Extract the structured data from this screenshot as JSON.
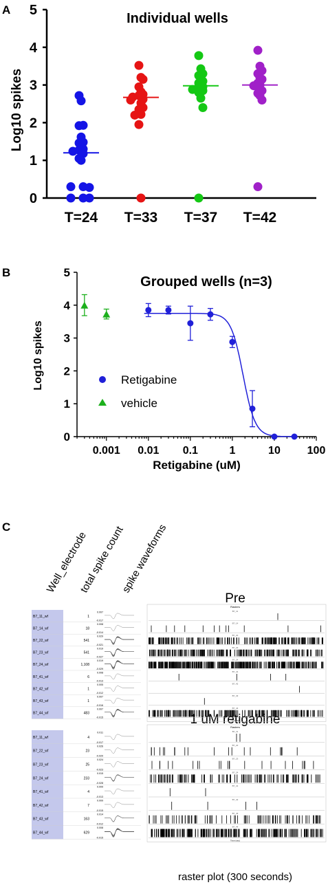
{
  "panels": {
    "a": "A",
    "b": "B",
    "c": "C"
  },
  "chart_data": [
    {
      "type": "scatter",
      "title": "Individual wells",
      "ylabel": "Log10 spikes",
      "xlabel": "",
      "ylim": [
        0,
        5
      ],
      "yticks": [
        "0",
        "1",
        "2",
        "3",
        "4",
        "5"
      ],
      "categories": [
        "T=24",
        "T=33",
        "T=37",
        "T=42"
      ],
      "colors": [
        "#1414e6",
        "#e61414",
        "#14c814",
        "#a020c8"
      ],
      "series": [
        {
          "values": [
            2.72,
            2.58,
            1.93,
            1.92,
            1.62,
            1.48,
            1.46,
            1.35,
            1.3,
            1.27,
            1.24,
            1.18,
            1.05,
            1.0,
            0.3,
            0.3,
            0.28,
            0.0,
            0.0,
            0.0
          ]
        },
        {
          "values": [
            3.52,
            3.2,
            3.15,
            2.95,
            2.82,
            2.75,
            2.72,
            2.68,
            2.62,
            2.6,
            2.52,
            2.4,
            2.35,
            2.22,
            2.2,
            1.95,
            0.0
          ]
        },
        {
          "values": [
            3.78,
            3.43,
            3.3,
            3.25,
            3.15,
            3.1,
            3.05,
            3.0,
            2.95,
            2.92,
            2.88,
            2.85,
            2.8,
            2.65,
            2.4,
            0.0
          ]
        },
        {
          "values": [
            3.92,
            3.5,
            3.38,
            3.3,
            3.2,
            3.15,
            3.05,
            3.0,
            2.98,
            2.95,
            2.9,
            2.85,
            2.78,
            2.72,
            2.6,
            0.3
          ]
        }
      ],
      "means": [
        1.2,
        2.67,
        2.98,
        3.0
      ]
    },
    {
      "type": "scatter",
      "title": "Grouped wells (n=3)",
      "xlabel": "Retigabine (uM)",
      "ylabel": "Log10 spikes",
      "xscale": "log",
      "ylim": [
        0,
        5
      ],
      "yticks": [
        "0",
        "1",
        "2",
        "3",
        "4",
        "5"
      ],
      "xticks": [
        {
          "v": 0.001,
          "label": "0.001"
        },
        {
          "v": 0.01,
          "label": "0.01"
        },
        {
          "v": 0.1,
          "label": "0.1"
        },
        {
          "v": 1,
          "label": "1"
        },
        {
          "v": 10,
          "label": "10"
        },
        {
          "v": 100,
          "label": "100"
        }
      ],
      "legend": "center-left",
      "series": [
        {
          "name": "Retigabine",
          "color": "#2020d8",
          "marker": "circle",
          "points": [
            {
              "x": 0.01,
              "y": 3.85,
              "err": 0.2
            },
            {
              "x": 0.03,
              "y": 3.85,
              "err": 0.12
            },
            {
              "x": 0.1,
              "y": 3.45,
              "err": 0.52
            },
            {
              "x": 0.3,
              "y": 3.72,
              "err": 0.18
            },
            {
              "x": 1,
              "y": 2.88,
              "err": 0.17
            },
            {
              "x": 3,
              "y": 0.85,
              "err": 0.55
            },
            {
              "x": 10,
              "y": 0.0,
              "err": 0.0
            },
            {
              "x": 30,
              "y": 0.0,
              "err": 0.0
            }
          ],
          "fit": {
            "top": 3.75,
            "bottom": 0.0,
            "ic50": 1.8,
            "hill": 3.0
          }
        },
        {
          "name": "vehicle",
          "color": "#1cb01c",
          "marker": "triangle",
          "points": [
            {
              "x": 0.0003,
              "y": 4.0,
              "err": 0.32
            },
            {
              "x": 0.001,
              "y": 3.73,
              "err": 0.15
            }
          ]
        }
      ]
    }
  ],
  "panel_c": {
    "column_headers": [
      "Well_electrode",
      "total spike count",
      "spike waveforms"
    ],
    "pre": {
      "title": "Pre",
      "raster_header": "Rasters",
      "time_label": "Time (sec)",
      "rows": [
        {
          "well": "B7_11_wf",
          "count": "1",
          "ymax": "0.007",
          "ymin": "-0.017",
          "density": 1
        },
        {
          "well": "B7_14_wf",
          "count": "18",
          "ymax": "0.008",
          "ymin": "-0.014",
          "density": 12
        },
        {
          "well": "B7_22_wf",
          "count": "541",
          "ymax": "0.029",
          "ymin": "-0.021",
          "density": 200
        },
        {
          "well": "B7_23_wf",
          "count": "541",
          "ymax": "0.019",
          "ymin": "-0.027",
          "density": 200
        },
        {
          "well": "B7_24_wf",
          "count": "1,108",
          "ymax": "0.019",
          "ymin": "-0.029",
          "density": 320
        },
        {
          "well": "B7_41_wf",
          "count": "6",
          "ymax": "0.008",
          "ymin": "-0.013",
          "density": 4
        },
        {
          "well": "B7_42_wf",
          "count": "1",
          "ymax": "0.005",
          "ymin": "-0.012",
          "density": 1
        },
        {
          "well": "B7_43_wf",
          "count": "1",
          "ymax": "0.007",
          "ymin": "-0.016",
          "density": 1
        },
        {
          "well": "B7_44_wf",
          "count": "483",
          "ymax": "0.007",
          "ymin": "-0.015",
          "density": 180
        }
      ]
    },
    "post": {
      "title": "1 uM retigabine",
      "raster_header": "Rasters",
      "time_label": "Time (sec)",
      "rows": [
        {
          "well": "B7_11_wf",
          "count": "4",
          "ymax": "0.011",
          "ymin": "-0.017",
          "density": 2
        },
        {
          "well": "B7_22_wf",
          "count": "23",
          "ymax": "0.026",
          "ymin": "-0.020",
          "density": 20
        },
        {
          "well": "B7_23_wf",
          "count": "25",
          "ymax": "0.024",
          "ymin": "-0.023",
          "density": 22
        },
        {
          "well": "B7_24_wf",
          "count": "233",
          "ymax": "0.015",
          "ymin": "-0.028",
          "density": 120
        },
        {
          "well": "B7_41_wf",
          "count": "4",
          "ymax": "0.009",
          "ymin": "-0.013",
          "density": 2
        },
        {
          "well": "B7_42_wf",
          "count": "7",
          "ymax": "0.009",
          "ymin": "-0.015",
          "density": 4
        },
        {
          "well": "B7_43_wf",
          "count": "163",
          "ymax": "0.014",
          "ymin": "-0.012",
          "density": 90
        },
        {
          "well": "B7_44_wf",
          "count": "629",
          "ymax": "0.008",
          "ymin": "-0.015",
          "density": 220
        }
      ]
    },
    "footer": "raster plot (300 seconds)"
  }
}
